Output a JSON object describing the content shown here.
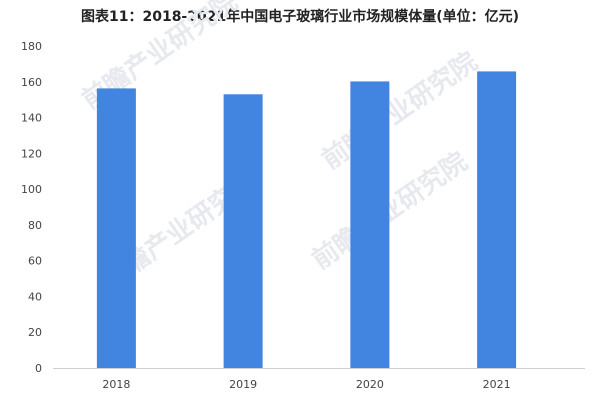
{
  "title": "图表11：2018-2021年中国电子玻璃行业市场规模体量(单位：亿元)",
  "watermark": "前瞻产业研究院",
  "chart_data": {
    "type": "bar",
    "title": "图表11：2018-2021年中国电子玻璃行业市场规模体量(单位：亿元)",
    "categories": [
      "2018",
      "2019",
      "2020",
      "2021"
    ],
    "values": [
      156.3,
      153.0,
      160.2,
      165.8
    ],
    "ylim": [
      0,
      180
    ],
    "yticks": [
      0,
      20,
      40,
      60,
      80,
      100,
      120,
      140,
      160,
      180
    ],
    "grid": false,
    "color": "#4285e0",
    "xlabel": "",
    "ylabel": ""
  }
}
